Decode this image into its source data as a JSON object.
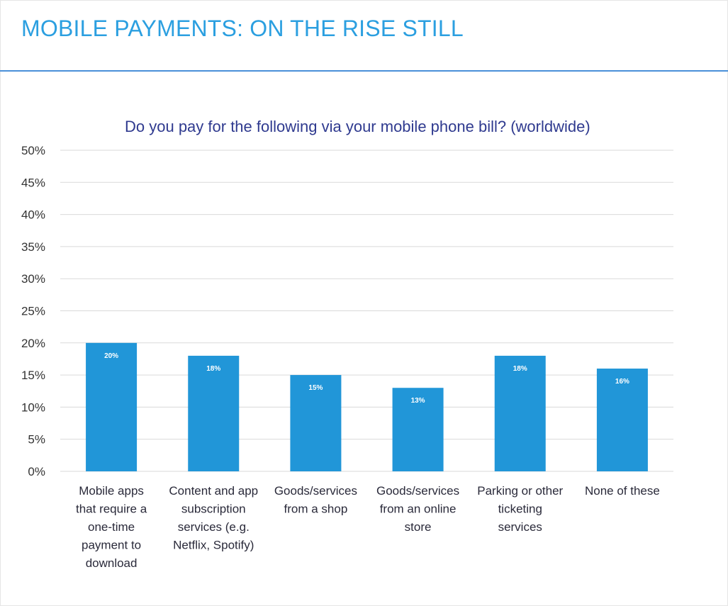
{
  "slide": {
    "title": "MOBILE PAYMENTS: ON THE RISE STILL"
  },
  "chart_data": {
    "type": "bar",
    "title": "Do you pay for the following via your mobile phone bill? (worldwide)",
    "categories": [
      "Mobile apps that require a one-time payment to download",
      "Content and app subscription services (e.g. Netflix, Spotify)",
      "Goods/services from a shop",
      "Goods/services from an online store",
      "Parking or other ticketing services",
      "None of these"
    ],
    "category_lines": [
      [
        "Mobile apps",
        "that require a",
        "one-time",
        "payment to",
        "download"
      ],
      [
        "Content and app",
        "subscription",
        "services (e.g.",
        "Netflix, Spotify)"
      ],
      [
        "Goods/services",
        "from a shop"
      ],
      [
        "Goods/services",
        "from an online",
        "store"
      ],
      [
        "Parking or other",
        "ticketing",
        "services"
      ],
      [
        "None of these"
      ]
    ],
    "values": [
      20,
      18,
      15,
      13,
      18,
      16
    ],
    "data_labels": [
      "20%",
      "18%",
      "15%",
      "13%",
      "18%",
      "16%"
    ],
    "ylim": [
      0,
      50
    ],
    "yticks": [
      0,
      5,
      10,
      15,
      20,
      25,
      30,
      35,
      40,
      45,
      50
    ],
    "ytick_labels": [
      "0%",
      "5%",
      "10%",
      "15%",
      "20%",
      "25%",
      "30%",
      "35%",
      "40%",
      "45%",
      "50%"
    ],
    "xlabel": "",
    "ylabel": "",
    "grid": true,
    "legend": "none",
    "bar_color": "#2196d8",
    "grid_color": "#d9d9d9"
  }
}
